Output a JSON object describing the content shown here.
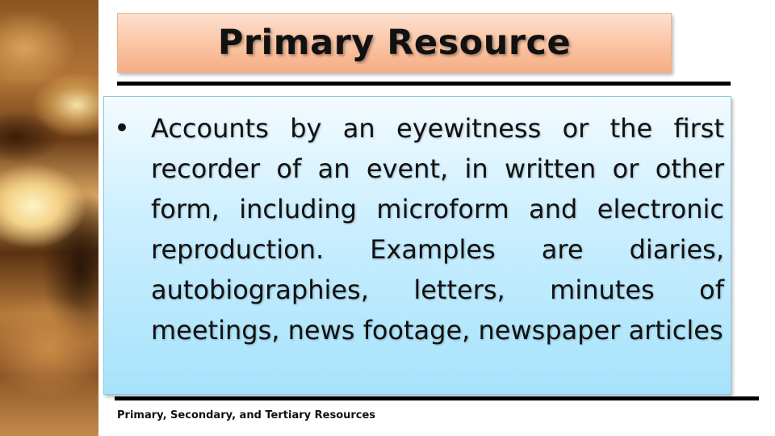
{
  "slide": {
    "title": "Primary Resource",
    "bullet_marker": "•",
    "bullet_text": "Accounts by an eyewitness or the first recorder of an event, in written or other form, including microform and electronic reproduction. Examples are diaries, autobiographies, letters, minutes of meetings, news footage, newspaper articles",
    "footer": "Primary, Secondary, and Tertiary Resources"
  },
  "colors": {
    "title_box": "#fbc6a6",
    "content_box": "#cdefff",
    "rules": "#000000",
    "text": "#111111"
  }
}
